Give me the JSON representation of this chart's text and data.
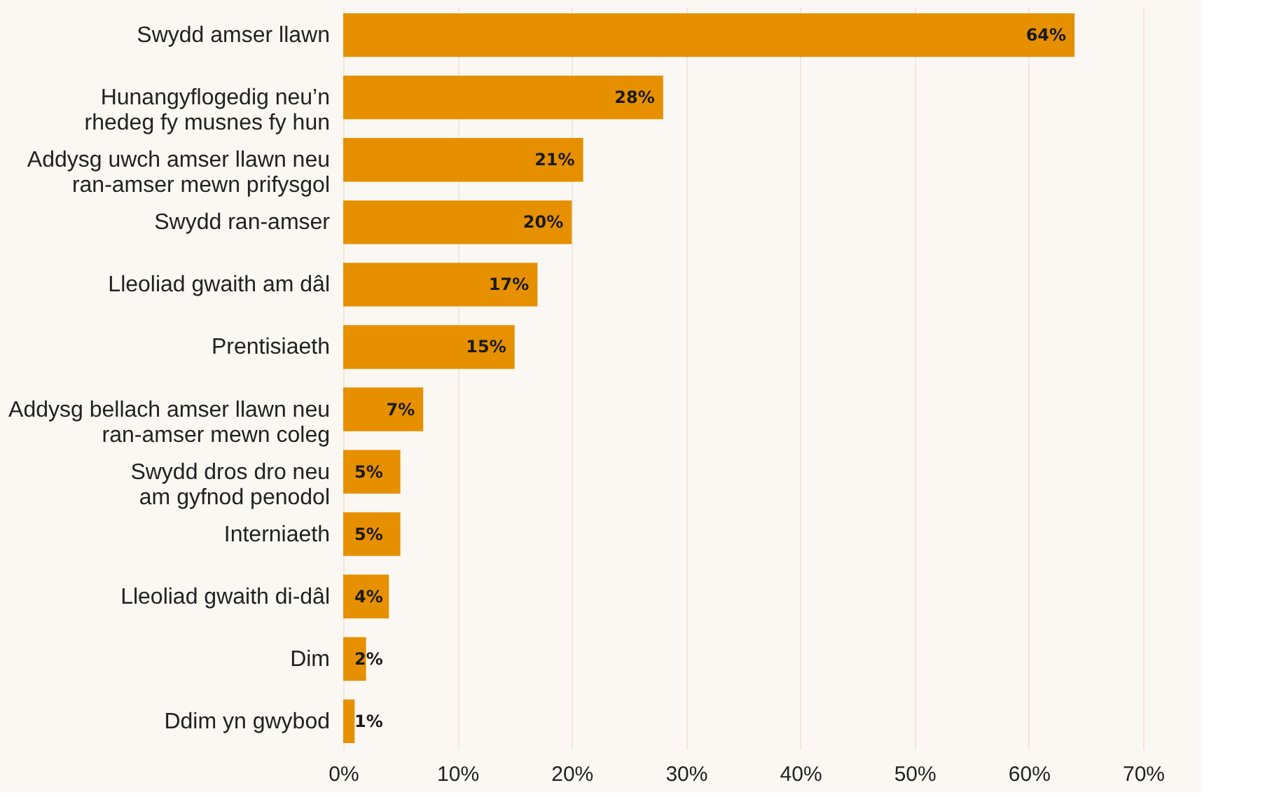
{
  "chart_data": {
    "type": "bar",
    "orientation": "horizontal",
    "categories": [
      "Swydd amser llawn",
      "Hunangyflogedig neu’n\nrhedeg fy musnes fy hun",
      "Addysg uwch amser llawn neu\nran-amser mewn prifysgol",
      "Swydd ran-amser",
      "Lleoliad gwaith am dâl",
      "Prentisiaeth",
      "Addysg bellach amser llawn neu\nran-amser mewn coleg",
      "Swydd dros dro neu\nam gyfnod penodol",
      "Interniaeth",
      "Lleoliad gwaith di-dâl",
      "Dim",
      "Ddim yn gwybod"
    ],
    "values": [
      64,
      28,
      21,
      20,
      17,
      15,
      7,
      5,
      5,
      4,
      2,
      1
    ],
    "value_labels": [
      "64%",
      "28%",
      "21%",
      "20%",
      "17%",
      "15%",
      "7%",
      "5%",
      "5%",
      "4%",
      "2%",
      "1%"
    ],
    "color": "#e69000",
    "xlim": [
      0,
      70
    ],
    "xticks": [
      {
        "value": 0,
        "label": "0%"
      },
      {
        "value": 10,
        "label": "10%"
      },
      {
        "value": 20,
        "label": "20%"
      },
      {
        "value": 30,
        "label": "30%"
      },
      {
        "value": 40,
        "label": "40%"
      },
      {
        "value": 50,
        "label": "50%"
      },
      {
        "value": 60,
        "label": "60%"
      },
      {
        "value": 70,
        "label": "70%"
      }
    ],
    "grid": "x"
  }
}
